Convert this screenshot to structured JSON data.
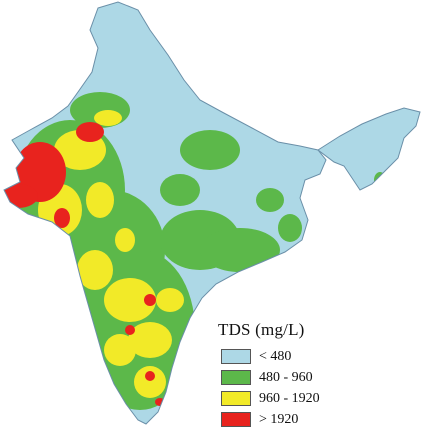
{
  "legend": {
    "title": "TDS (mg/L)",
    "items": [
      {
        "label": "< 480",
        "color": "#add8e6"
      },
      {
        "label": "480 - 960",
        "color": "#5cb84a"
      },
      {
        "label": "960 - 1920",
        "color": "#f2ea28"
      },
      {
        "label": "> 1920",
        "color": "#e8231e"
      }
    ]
  },
  "colors": {
    "background": "#ffffff",
    "border": "#6a8fa8",
    "low": "#add8e6",
    "mid": "#5cb84a",
    "high": "#f2ea28",
    "very_high": "#e8231e"
  }
}
